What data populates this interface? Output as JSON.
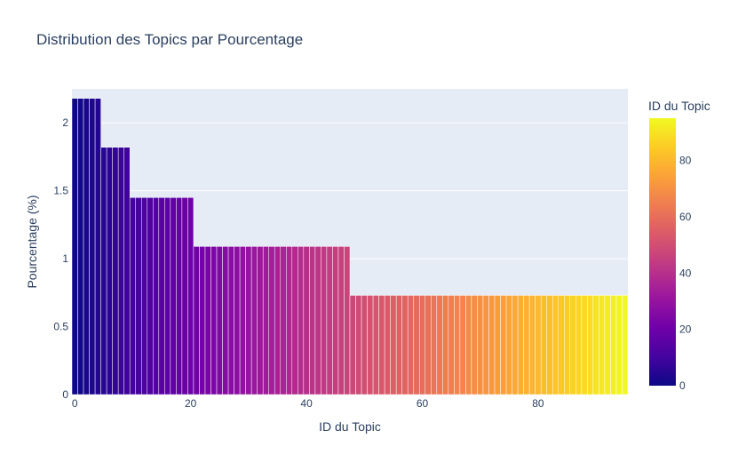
{
  "chart_data": {
    "type": "bar",
    "title": "Distribution des Topics par Pourcentage",
    "xlabel": "ID du Topic",
    "ylabel": "Pourcentage (%)",
    "xlim": [
      -0.5,
      95.5
    ],
    "ylim": [
      0,
      2.25
    ],
    "x_ticks": [
      0,
      20,
      40,
      60,
      80
    ],
    "x_tick_labels": [
      "0",
      "20",
      "40",
      "60",
      "80"
    ],
    "y_ticks": [
      0,
      0.5,
      1,
      1.5,
      2
    ],
    "y_tick_labels": [
      "0",
      "0.5",
      "1",
      "1.5",
      "2"
    ],
    "grid": true,
    "colorbar": {
      "title": "ID du Topic",
      "range": [
        0,
        95
      ],
      "ticks": [
        0,
        20,
        40,
        60,
        80
      ],
      "tick_labels": [
        "0",
        "20",
        "40",
        "60",
        "80"
      ],
      "colorscale": [
        "#0d0887",
        "#46039f",
        "#7201a8",
        "#9c179e",
        "#bd3786",
        "#d8576b",
        "#ed7953",
        "#fb9f3a",
        "#fdca26",
        "#f0f921"
      ]
    },
    "groups": [
      {
        "from": 0,
        "to": 4,
        "value": 2.18
      },
      {
        "from": 5,
        "to": 9,
        "value": 1.82
      },
      {
        "from": 10,
        "to": 20,
        "value": 1.45
      },
      {
        "from": 21,
        "to": 47,
        "value": 1.09
      },
      {
        "from": 48,
        "to": 95,
        "value": 0.73
      }
    ]
  },
  "colors": {
    "plot_background": "#e5ecf6",
    "grid": "#ffffff",
    "text": "#2a3f5f",
    "bar_outline": "#ffffff"
  }
}
